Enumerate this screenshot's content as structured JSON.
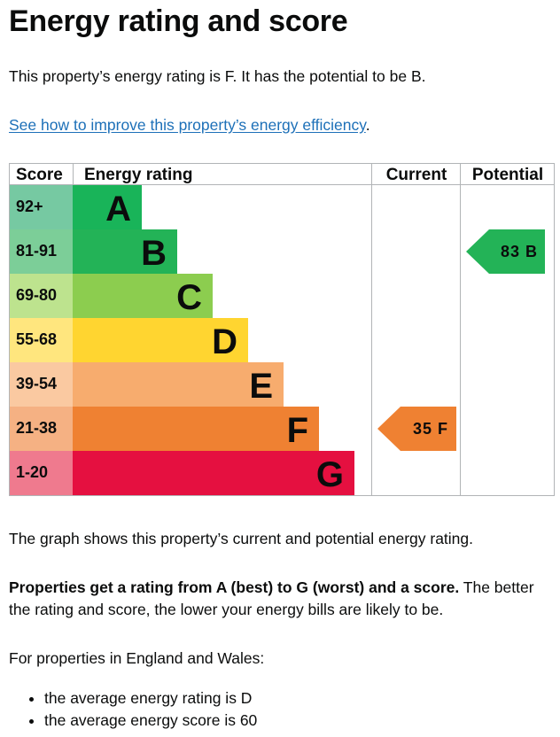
{
  "title": "Energy rating and score",
  "intro": "This property’s energy rating is F. It has the potential to be B.",
  "improve_link": "See how to improve this property’s energy efficiency",
  "improve_link_suffix": ".",
  "chart_data": {
    "type": "bar",
    "headers": {
      "score": "Score",
      "rating": "Energy rating",
      "current": "Current",
      "potential": "Potential"
    },
    "bands": [
      {
        "score": "92+",
        "letter": "A",
        "color": "#19b459",
        "light": "#76c9a2"
      },
      {
        "score": "81-91",
        "letter": "B",
        "color": "#23b357",
        "light": "#7cce98"
      },
      {
        "score": "69-80",
        "letter": "C",
        "color": "#8ccd4f",
        "light": "#bde38e"
      },
      {
        "score": "55-68",
        "letter": "D",
        "color": "#ffd530",
        "light": "#ffe67e"
      },
      {
        "score": "39-54",
        "letter": "E",
        "color": "#f7ac6e",
        "light": "#fac9a1"
      },
      {
        "score": "21-38",
        "letter": "F",
        "color": "#ef8132",
        "light": "#f5b183"
      },
      {
        "score": "1-20",
        "letter": "G",
        "color": "#e51040",
        "light": "#ef7a8e"
      }
    ],
    "current": {
      "score": 35,
      "letter": "F",
      "label": "35 F",
      "color": "#ef8132"
    },
    "potential": {
      "score": 83,
      "letter": "B",
      "label": "83 B",
      "color": "#23b357"
    }
  },
  "graph_note": "The graph shows this property’s current and potential energy rating.",
  "ratings_bold": "Properties get a rating from A (best) to G (worst) and a score.",
  "ratings_text": " The better the rating and score, the lower your energy bills are likely to be.",
  "england_wales": "For properties in England and Wales:",
  "bullets": [
    "the average energy rating is D",
    "the average energy score is 60"
  ]
}
